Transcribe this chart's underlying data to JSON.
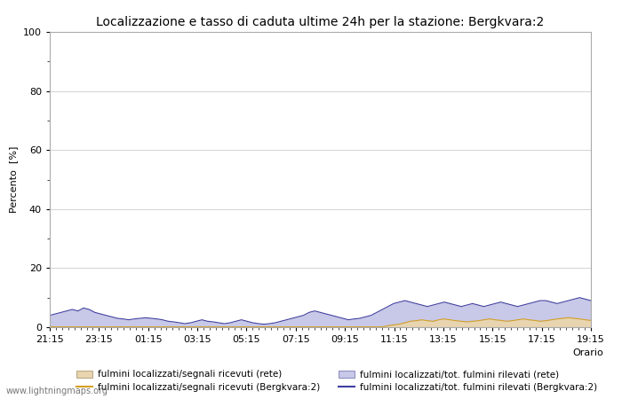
{
  "title": "Localizzazione e tasso di caduta ultime 24h per la stazione: Bergkvara:2",
  "ylabel": "Percento  [%]",
  "xlabel": "Orario",
  "xlim_labels": [
    "21:15",
    "23:15",
    "01:15",
    "03:15",
    "05:15",
    "07:15",
    "09:15",
    "11:15",
    "13:15",
    "15:15",
    "17:15",
    "19:15"
  ],
  "ylim": [
    0,
    100
  ],
  "yticks": [
    0,
    20,
    40,
    60,
    80,
    100
  ],
  "yticks_minor": [
    10,
    30,
    50,
    70,
    90
  ],
  "background_color": "#ffffff",
  "plot_bg_color": "#ffffff",
  "grid_color": "#cccccc",
  "fill_rete_color": "#e8d5b0",
  "fill_rete_alpha": 0.6,
  "fill_bergkvara_color": "#c8c8e8",
  "fill_bergkvara_alpha": 0.7,
  "line_rete_color": "#d4a020",
  "line_bergkvara_color": "#4040a0",
  "watermark": "www.lightningmaps.org",
  "legend": [
    {
      "label": "fulmini localizzati/segnali ricevuti (rete)",
      "type": "fill",
      "color": "#e8d5b0"
    },
    {
      "label": "fulmini localizzati/segnali ricevuti (Bergkvara:2)",
      "type": "line",
      "color": "#d4a020"
    },
    {
      "label": "fulmini localizzati/tot. fulmini rilevati (rete)",
      "type": "fill",
      "color": "#c8c8e8"
    },
    {
      "label": "fulmini localizzati/tot. fulmini rilevati (Bergkvara:2)",
      "type": "line",
      "color": "#4040a0"
    }
  ],
  "n_points": 97,
  "rete_fill_values": [
    0.2,
    0.1,
    0.1,
    0.1,
    0.1,
    0.1,
    0.1,
    0.1,
    0.1,
    0.1,
    0.1,
    0.1,
    0.1,
    0.1,
    0.1,
    0.1,
    0.1,
    0.1,
    0.1,
    0.1,
    0.1,
    0.1,
    0.1,
    0.1,
    0.1,
    0.1,
    0.1,
    0.1,
    0.1,
    0.1,
    0.1,
    0.1,
    0.1,
    0.1,
    0.1,
    0.1,
    0.1,
    0.1,
    0.1,
    0.1,
    0.1,
    0.1,
    0.1,
    0.1,
    0.1,
    0.1,
    0.1,
    0.1,
    0.1,
    0.1,
    0.1,
    0.1,
    0.1,
    0.1,
    0.1,
    0.1,
    0.1,
    0.1,
    0.1,
    0.1,
    0.5,
    0.8,
    1.0,
    1.5,
    2.0,
    2.2,
    2.5,
    2.2,
    2.0,
    2.5,
    2.8,
    2.5,
    2.2,
    2.0,
    1.8,
    2.0,
    2.2,
    2.5,
    2.8,
    2.5,
    2.3,
    2.0,
    2.2,
    2.5,
    2.8,
    2.5,
    2.3,
    2.0,
    2.2,
    2.5,
    2.8,
    3.0,
    3.2,
    3.0,
    2.8,
    2.5,
    2.3
  ],
  "bergkvara_fill_values": [
    4.0,
    4.5,
    5.0,
    5.5,
    6.0,
    5.5,
    6.5,
    6.0,
    5.0,
    4.5,
    4.0,
    3.5,
    3.0,
    2.8,
    2.5,
    2.8,
    3.0,
    3.2,
    3.0,
    2.8,
    2.5,
    2.0,
    1.8,
    1.5,
    1.2,
    1.5,
    2.0,
    2.5,
    2.0,
    1.8,
    1.5,
    1.2,
    1.5,
    2.0,
    2.5,
    2.0,
    1.5,
    1.2,
    1.0,
    1.2,
    1.5,
    2.0,
    2.5,
    3.0,
    3.5,
    4.0,
    5.0,
    5.5,
    5.0,
    4.5,
    4.0,
    3.5,
    3.0,
    2.5,
    2.8,
    3.0,
    3.5,
    4.0,
    5.0,
    6.0,
    7.0,
    8.0,
    8.5,
    9.0,
    8.5,
    8.0,
    7.5,
    7.0,
    7.5,
    8.0,
    8.5,
    8.0,
    7.5,
    7.0,
    7.5,
    8.0,
    7.5,
    7.0,
    7.5,
    8.0,
    8.5,
    8.0,
    7.5,
    7.0,
    7.5,
    8.0,
    8.5,
    9.0,
    9.0,
    8.5,
    8.0,
    8.5,
    9.0,
    9.5,
    10.0,
    9.5,
    9.0
  ]
}
